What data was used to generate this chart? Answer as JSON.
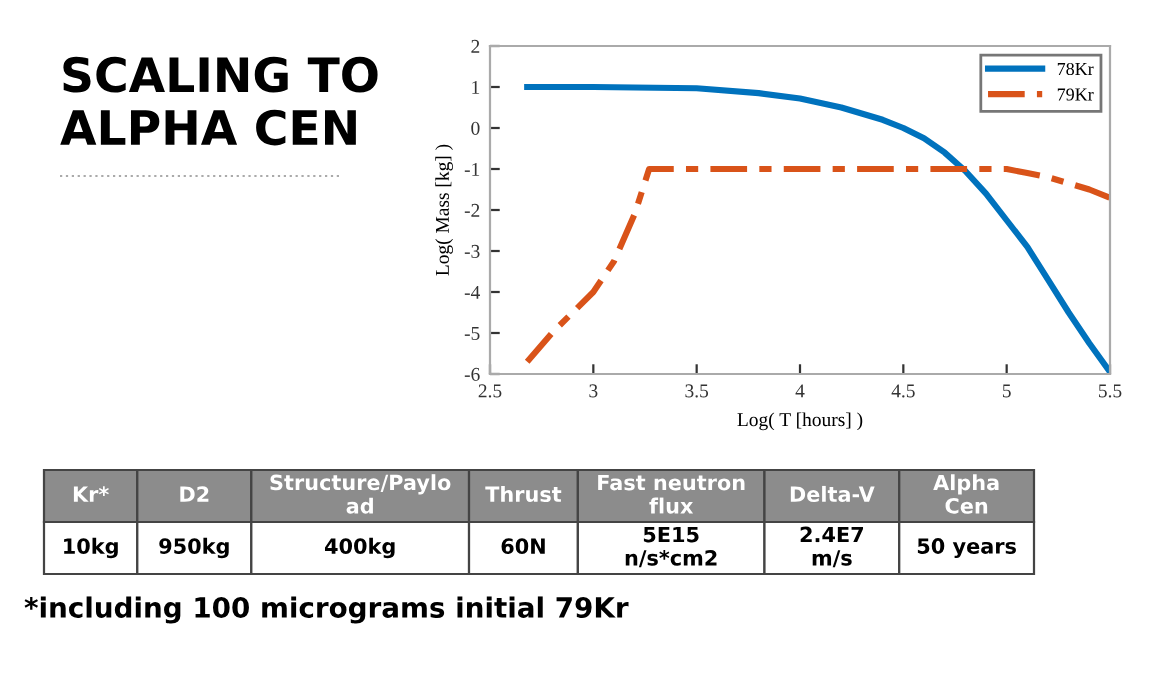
{
  "chart_data": [
    {
      "type": "line",
      "title": "SCALING TO\nALPHA CEN",
      "xlabel": "Log( T [hours] )",
      "ylabel": "Log( Mass [kg] )",
      "xlim": [
        2.5,
        5.5
      ],
      "ylim": [
        -6,
        2
      ],
      "xticks": [
        2.5,
        3,
        3.5,
        4,
        4.5,
        5,
        5.5
      ],
      "yticks": [
        -6,
        -5,
        -4,
        -3,
        -2,
        -1,
        0,
        1,
        2
      ],
      "legend": "top right",
      "grid": false,
      "series": [
        {
          "name": "78Kr",
          "color": "#0072bd",
          "line_style": "solid",
          "x": [
            2.68,
            3.0,
            3.5,
            3.8,
            4.0,
            4.2,
            4.4,
            4.5,
            4.6,
            4.7,
            4.8,
            4.9,
            5.0,
            5.1,
            5.2,
            5.3,
            5.4,
            5.5
          ],
          "values": [
            1,
            1,
            0.97,
            0.85,
            0.72,
            0.5,
            0.2,
            0.0,
            -0.25,
            -0.6,
            -1.05,
            -1.6,
            -2.25,
            -2.9,
            -3.7,
            -4.5,
            -5.25,
            -5.95
          ]
        },
        {
          "name": "79Kr",
          "color": "#d95319",
          "line_style": "dashed",
          "x": [
            2.68,
            2.8,
            2.9,
            3.0,
            3.1,
            3.2,
            3.27,
            4.5,
            5.0,
            5.1,
            5.2,
            5.3,
            5.4,
            5.5
          ],
          "values": [
            -5.7,
            -5.0,
            -4.5,
            -4.0,
            -3.25,
            -2.1,
            -1.0,
            -1.0,
            -1.0,
            -1.1,
            -1.2,
            -1.35,
            -1.5,
            -1.7
          ]
        }
      ]
    },
    {
      "type": "other",
      "categories": [
        "Kr*",
        "D2",
        "Structure/Paylo\nad",
        "Thrust",
        "Fast neutron\nflux",
        "Delta-V",
        "Alpha\nCen"
      ],
      "cell_labels": [
        [
          "10kg",
          "950kg",
          "400kg",
          "60N",
          "5E15\nn/s*cm2",
          "2.4E7\nm/s",
          "50 years"
        ]
      ],
      "annotations": [
        "*including 100 micrograms initial 79Kr"
      ]
    }
  ]
}
